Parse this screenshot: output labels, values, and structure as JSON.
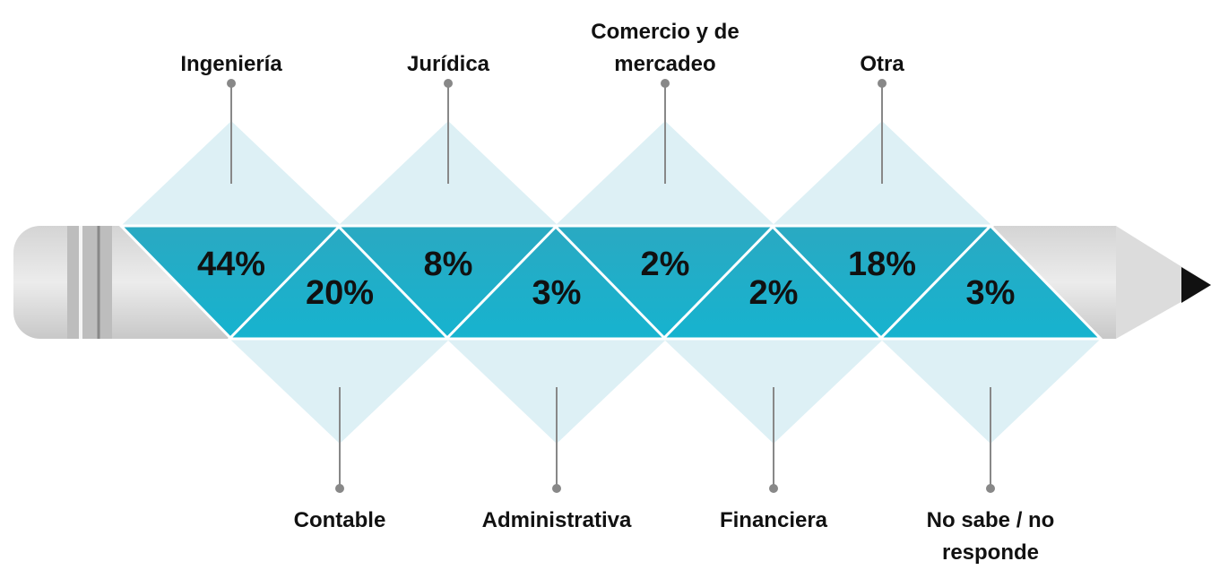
{
  "items": [
    {
      "label": "Ingeniería",
      "value": "44%"
    },
    {
      "label": "Contable",
      "value": "20%"
    },
    {
      "label": "Jurídica",
      "value": "8%"
    },
    {
      "label": "Administrativa",
      "value": "3%"
    },
    {
      "label": "Comercio y de mercadeo",
      "value": "2%"
    },
    {
      "label": "Financiera",
      "value": "2%"
    },
    {
      "label": "Otra",
      "value": "18%"
    },
    {
      "label": "No sabe / no responde",
      "value": "3%"
    }
  ]
}
